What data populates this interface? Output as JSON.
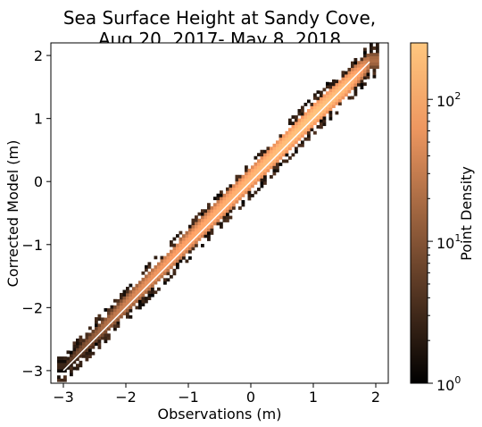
{
  "chart_data": {
    "type": "heatmap",
    "title_lines": [
      "Sea Surface Height at Sandy Cove,",
      "Aug 20, 2017- May 8, 2018"
    ],
    "xlabel": "Observations (m)",
    "ylabel": "Corrected Model (m)",
    "xlim": [
      -3.2,
      2.2
    ],
    "ylim": [
      -3.2,
      2.2
    ],
    "x_ticks": [
      -3,
      -2,
      -1,
      0,
      1,
      2
    ],
    "x_tick_labels": [
      "−3",
      "−2",
      "−1",
      "0",
      "1",
      "2"
    ],
    "y_ticks": [
      -3,
      -2,
      -1,
      0,
      1,
      2
    ],
    "y_tick_labels": [
      "−3",
      "−2",
      "−1",
      "0",
      "1",
      "2"
    ],
    "colorbar": {
      "label": "Point Density",
      "scale": "log",
      "range": [
        1,
        250
      ],
      "colormap": "copper",
      "ticks": [
        {
          "value": 1,
          "base": "10",
          "exp": "0"
        },
        {
          "value": 10,
          "base": "10",
          "exp": "1"
        },
        {
          "value": 100,
          "base": "10",
          "exp": "2"
        }
      ]
    },
    "density_band": {
      "description_points": [
        {
          "x": -3.0,
          "y": -2.95,
          "peak_density": 3
        },
        {
          "x": -2.5,
          "y": -2.45,
          "peak_density": 15
        },
        {
          "x": -2.0,
          "y": -1.95,
          "peak_density": 40
        },
        {
          "x": -1.5,
          "y": -1.45,
          "peak_density": 70
        },
        {
          "x": -1.0,
          "y": -0.95,
          "peak_density": 100
        },
        {
          "x": -0.5,
          "y": -0.45,
          "peak_density": 130
        },
        {
          "x": 0.0,
          "y": 0.05,
          "peak_density": 160
        },
        {
          "x": 0.5,
          "y": 0.55,
          "peak_density": 200
        },
        {
          "x": 1.0,
          "y": 1.05,
          "peak_density": 230
        },
        {
          "x": 1.5,
          "y": 1.5,
          "peak_density": 180
        },
        {
          "x": 1.9,
          "y": 1.9,
          "peak_density": 20
        }
      ],
      "identity_line": {
        "from": [
          -3.0,
          -3.0
        ],
        "to": [
          1.9,
          1.9
        ],
        "color": "#ffffff"
      }
    }
  }
}
